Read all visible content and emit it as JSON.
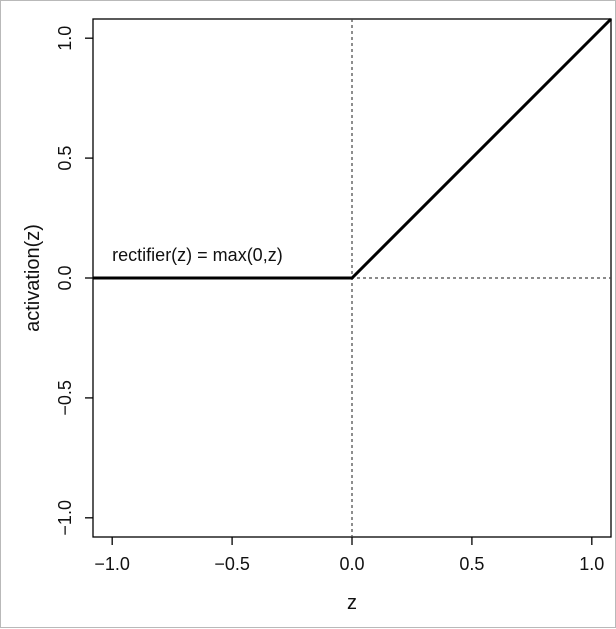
{
  "chart_data": {
    "type": "line",
    "title": "",
    "xlabel": "z",
    "ylabel": "activation(z)",
    "xlim": [
      -1.08,
      1.08
    ],
    "ylim": [
      -1.08,
      1.08
    ],
    "x_ticks": [
      {
        "value": -1.0,
        "label": "−1.0"
      },
      {
        "value": -0.5,
        "label": "−0.5"
      },
      {
        "value": 0.0,
        "label": "0.0"
      },
      {
        "value": 0.5,
        "label": "0.5"
      },
      {
        "value": 1.0,
        "label": "1.0"
      }
    ],
    "y_ticks": [
      {
        "value": -1.0,
        "label": "−1.0"
      },
      {
        "value": -0.5,
        "label": "−0.5"
      },
      {
        "value": 0.0,
        "label": "0.0"
      },
      {
        "value": 0.5,
        "label": "0.5"
      },
      {
        "value": 1.0,
        "label": "1.0"
      }
    ],
    "series": [
      {
        "x": [
          -1.08,
          0.0,
          1.08
        ],
        "y": [
          0.0,
          0.0,
          1.08
        ],
        "color": "#000000"
      }
    ],
    "reference_lines": [
      {
        "orientation": "vertical",
        "value": 0.0,
        "style": "dashed"
      },
      {
        "orientation": "horizontal",
        "value": 0.0,
        "style": "dashed"
      }
    ],
    "annotation": {
      "text": "rectifier(z) = max(0,z)",
      "x": -1.0,
      "y": 0.0
    },
    "grid": false,
    "legend": "none"
  }
}
